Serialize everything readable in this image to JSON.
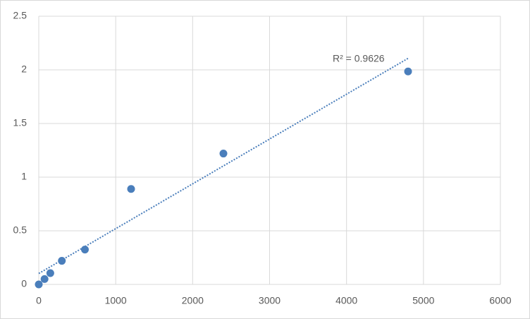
{
  "chart_data": {
    "type": "scatter",
    "x": [
      0,
      75,
      150,
      300,
      600,
      1200,
      2400,
      4800
    ],
    "values": [
      0,
      0.05,
      0.105,
      0.22,
      0.325,
      0.89,
      1.22,
      1.985
    ],
    "color": "#4a7ebb",
    "trendline": "linear",
    "annotation": "R² = 0.9626",
    "xlim": [
      0,
      6000
    ],
    "xticks": [
      0,
      1000,
      2000,
      3000,
      4000,
      5000,
      6000
    ],
    "ylim": [
      0,
      2.5
    ],
    "yticks": [
      0,
      0.5,
      1,
      1.5,
      2,
      2.5
    ],
    "grid": true
  }
}
